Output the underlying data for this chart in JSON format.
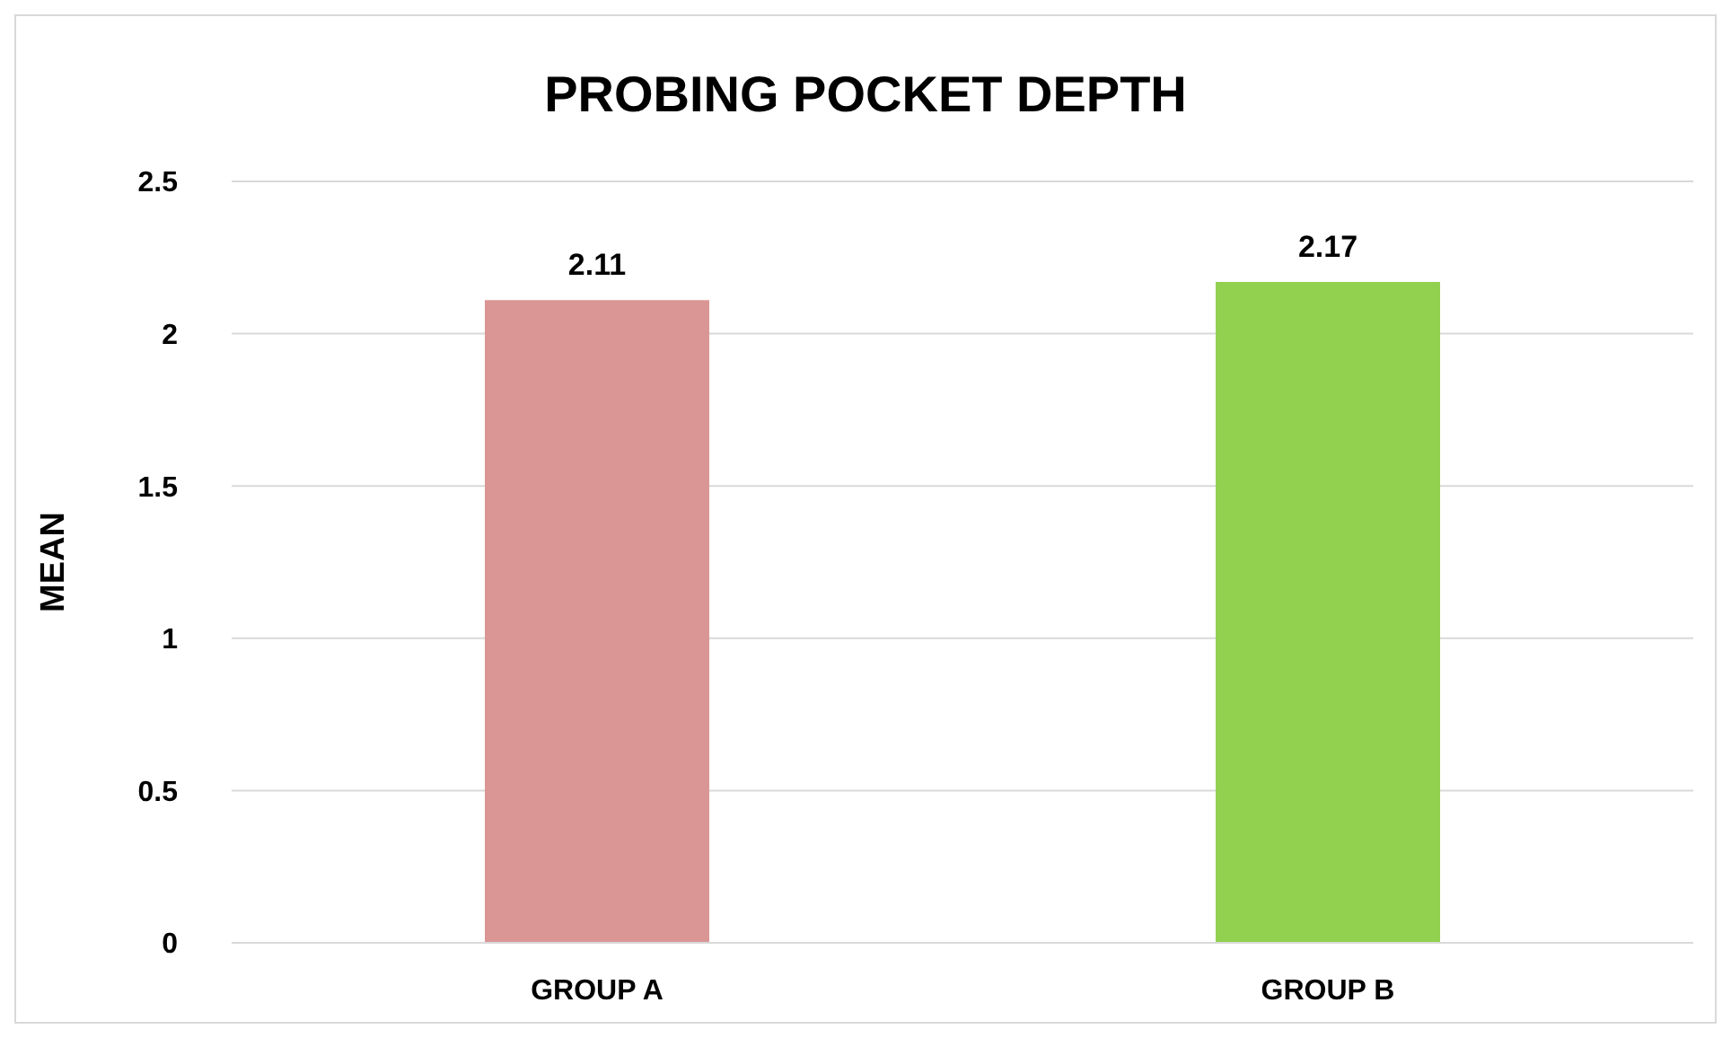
{
  "chart_data": {
    "type": "bar",
    "title": "PROBING POCKET DEPTH",
    "ylabel": "MEAN",
    "categories": [
      "GROUP A",
      "GROUP B"
    ],
    "values": [
      2.11,
      2.17
    ],
    "colors": [
      "#da9694",
      "#92d050"
    ],
    "ylim": [
      0,
      2.5
    ],
    "yticks": [
      0,
      0.5,
      1,
      1.5,
      2,
      2.5
    ],
    "grid": "y",
    "data_labels": true
  }
}
